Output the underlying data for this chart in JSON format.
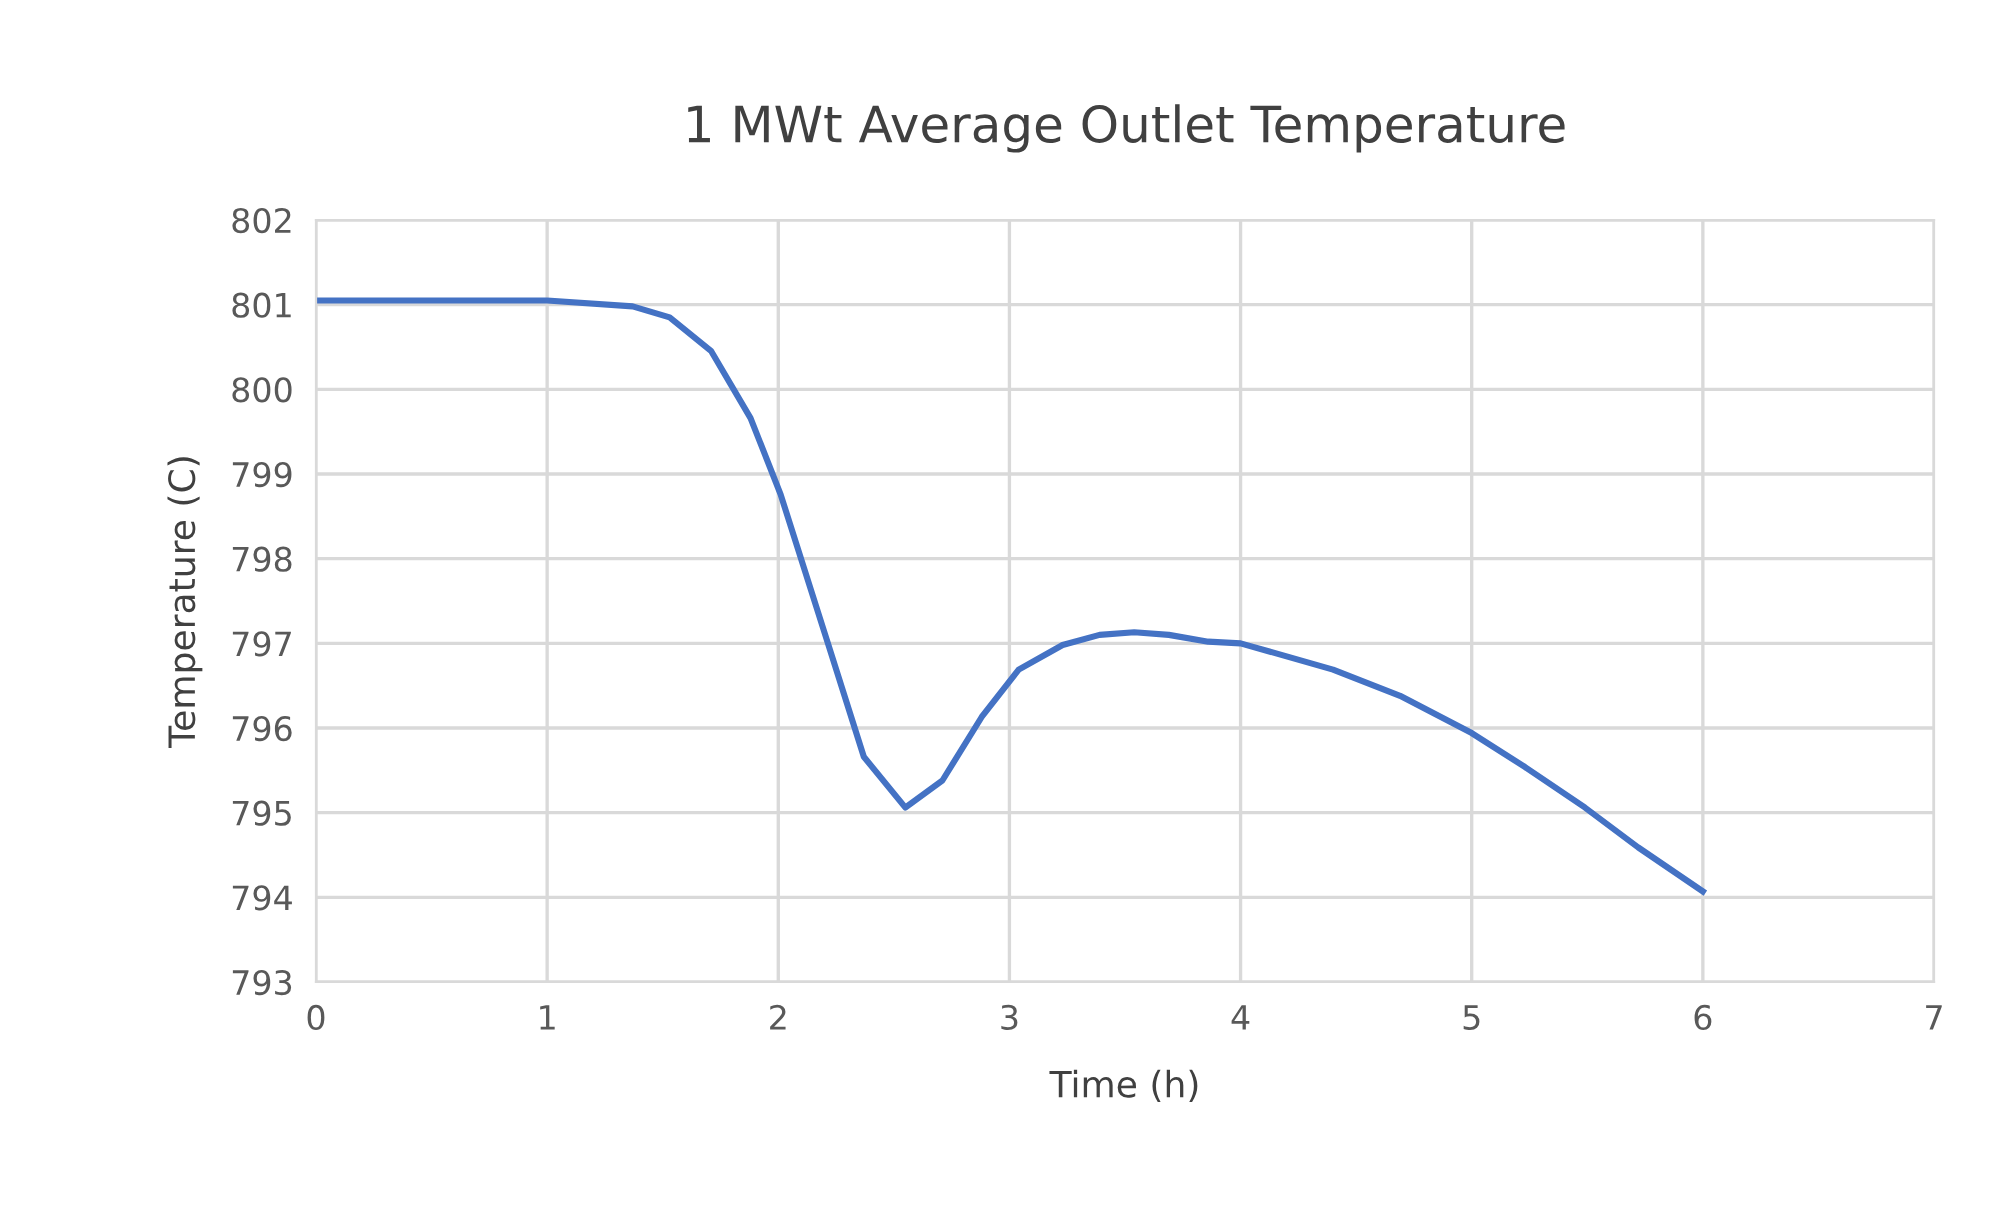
{
  "chart_data": {
    "type": "line",
    "title": "1 MWt Average Outlet Temperature",
    "xlabel": "Time (h)",
    "ylabel": "Temperature (C)",
    "series": [
      {
        "color": "#4472c4",
        "x": [
          0,
          1,
          1.37,
          1.53,
          1.71,
          1.88,
          2.01,
          2.21,
          2.37,
          2.55,
          2.71,
          2.88,
          3.04,
          3.23,
          3.39,
          3.54,
          3.69,
          3.86,
          4.0,
          4.4,
          4.69,
          5.0,
          5.23,
          5.49,
          5.72,
          6.0
        ],
        "values": [
          801.05,
          801.05,
          800.98,
          800.85,
          800.45,
          799.66,
          798.76,
          797.04,
          795.66,
          795.06,
          795.38,
          796.13,
          796.69,
          796.98,
          797.1,
          797.13,
          797.1,
          797.02,
          797.0,
          796.69,
          796.38,
          795.94,
          795.54,
          795.06,
          794.59,
          794.07
        ]
      }
    ],
    "xlim": [
      0,
      7
    ],
    "xticks": [
      0,
      1,
      2,
      3,
      4,
      5,
      6,
      7
    ],
    "ylim": [
      793,
      802
    ],
    "yticks": [
      793,
      794,
      795,
      796,
      797,
      798,
      799,
      800,
      801,
      802
    ],
    "grid": true,
    "marker": "none",
    "line_style": "solid"
  }
}
